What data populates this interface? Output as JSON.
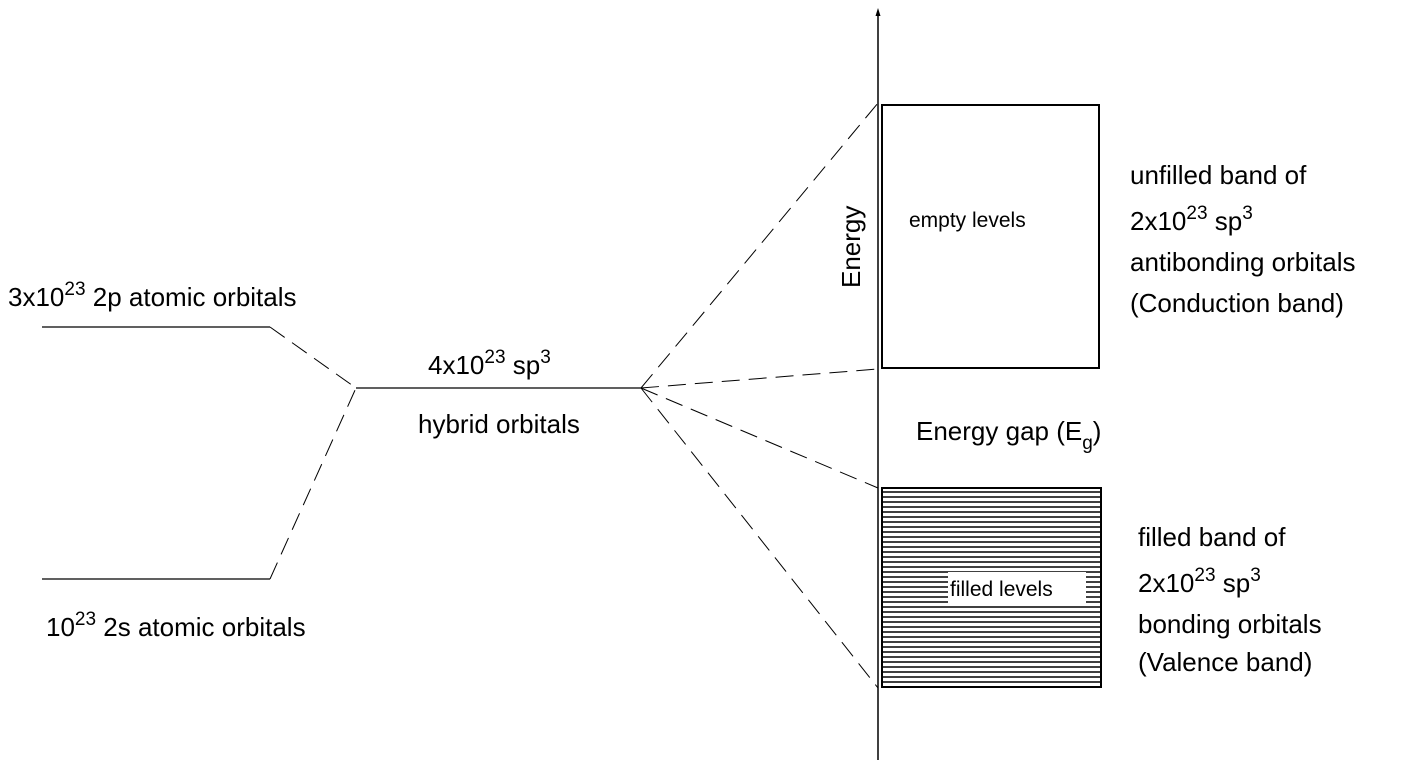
{
  "axis": {
    "label": "Energy"
  },
  "left": {
    "p_count": "3x10",
    "p_exp": "23",
    "p_rest": " 2p atomic orbitals",
    "s_count": "10",
    "s_exp": "23",
    "s_rest": " 2s atomic orbitals"
  },
  "middle": {
    "line1_count": "4x10",
    "line1_exp": "23",
    "line1_rest": " sp",
    "line1_exp2": "3",
    "line2": "hybrid orbitals"
  },
  "bands": {
    "empty_label": "empty levels",
    "filled_label": "filled levels",
    "gap_main": "Energy gap (E",
    "gap_sub": "g",
    "gap_close": ")"
  },
  "conduction": {
    "line1": "unfilled band of",
    "line2_count": "2x10",
    "line2_exp": "23",
    "line2_rest": " sp",
    "line2_exp2": "3",
    "line3": "antibonding orbitals",
    "line4": "(Conduction band)"
  },
  "valence": {
    "line1": "filled band of",
    "line2_count": "2x10",
    "line2_exp": "23",
    "line2_rest": " sp",
    "line2_exp2": "3",
    "line3": "bonding orbitals",
    "line4": "(Valence band)"
  }
}
